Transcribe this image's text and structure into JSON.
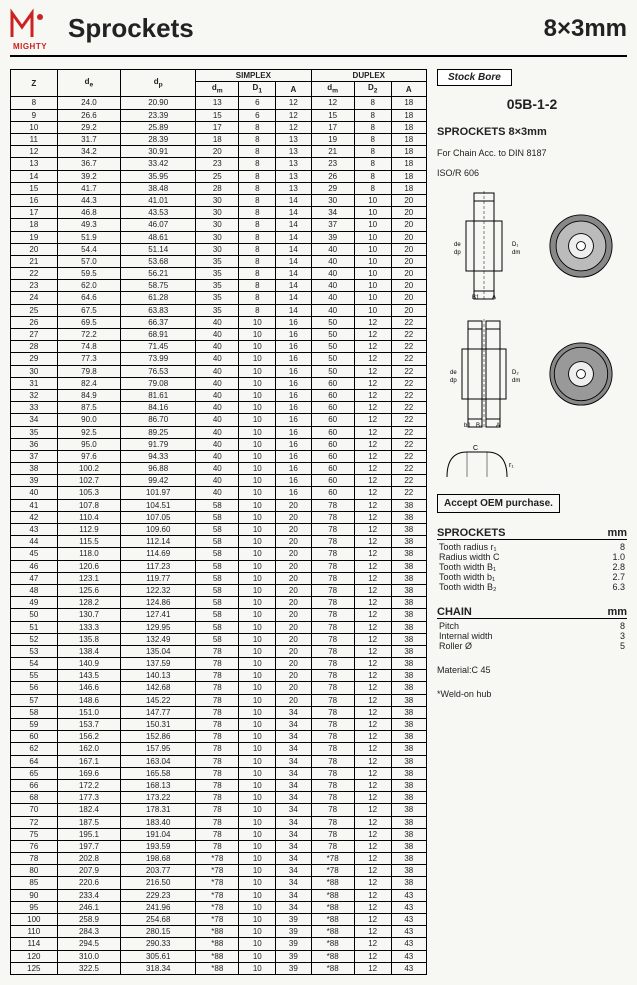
{
  "header": {
    "brand": "MIGHTY",
    "title": "Sprockets",
    "dim": "8×3mm"
  },
  "table": {
    "headers": {
      "z": "Z",
      "de": "d",
      "dp": "d",
      "simplex": "SIMPLEX",
      "duplex": "DUPLEX",
      "dm": "d",
      "d1": "D",
      "a": "A",
      "d2": "D"
    },
    "sub": {
      "de": "e",
      "dp": "p",
      "dm": "m",
      "d1": "1",
      "d2": "2"
    },
    "rows": [
      [
        "8",
        "24.0",
        "20.90",
        "13",
        "6",
        "12",
        "12",
        "8",
        "18"
      ],
      [
        "9",
        "26.6",
        "23.39",
        "15",
        "6",
        "12",
        "15",
        "8",
        "18"
      ],
      [
        "10",
        "29.2",
        "25.89",
        "17",
        "8",
        "12",
        "17",
        "8",
        "18"
      ],
      [
        "11",
        "31.7",
        "28.39",
        "18",
        "8",
        "13",
        "19",
        "8",
        "18"
      ],
      [
        "12",
        "34.2",
        "30.91",
        "20",
        "8",
        "13",
        "21",
        "8",
        "18"
      ],
      [
        "13",
        "36.7",
        "33.42",
        "23",
        "8",
        "13",
        "23",
        "8",
        "18"
      ],
      [
        "14",
        "39.2",
        "35.95",
        "25",
        "8",
        "13",
        "26",
        "8",
        "18"
      ],
      [
        "15",
        "41.7",
        "38.48",
        "28",
        "8",
        "13",
        "29",
        "8",
        "18"
      ],
      [
        "16",
        "44.3",
        "41.01",
        "30",
        "8",
        "14",
        "30",
        "10",
        "20"
      ],
      [
        "17",
        "46.8",
        "43.53",
        "30",
        "8",
        "14",
        "34",
        "10",
        "20"
      ],
      [
        "18",
        "49.3",
        "46.07",
        "30",
        "8",
        "14",
        "37",
        "10",
        "20"
      ],
      [
        "19",
        "51.9",
        "48.61",
        "30",
        "8",
        "14",
        "39",
        "10",
        "20"
      ],
      [
        "20",
        "54.4",
        "51.14",
        "30",
        "8",
        "14",
        "40",
        "10",
        "20"
      ],
      [
        "21",
        "57.0",
        "53.68",
        "35",
        "8",
        "14",
        "40",
        "10",
        "20"
      ],
      [
        "22",
        "59.5",
        "56.21",
        "35",
        "8",
        "14",
        "40",
        "10",
        "20"
      ],
      [
        "23",
        "62.0",
        "58.75",
        "35",
        "8",
        "14",
        "40",
        "10",
        "20"
      ],
      [
        "24",
        "64.6",
        "61.28",
        "35",
        "8",
        "14",
        "40",
        "10",
        "20"
      ],
      [
        "25",
        "67.5",
        "63.83",
        "35",
        "8",
        "14",
        "40",
        "10",
        "20"
      ],
      [
        "26",
        "69.5",
        "66.37",
        "40",
        "10",
        "16",
        "50",
        "12",
        "22"
      ],
      [
        "27",
        "72.2",
        "68.91",
        "40",
        "10",
        "16",
        "50",
        "12",
        "22"
      ],
      [
        "28",
        "74.8",
        "71.45",
        "40",
        "10",
        "16",
        "50",
        "12",
        "22"
      ],
      [
        "29",
        "77.3",
        "73.99",
        "40",
        "10",
        "16",
        "50",
        "12",
        "22"
      ],
      [
        "30",
        "79.8",
        "76.53",
        "40",
        "10",
        "16",
        "50",
        "12",
        "22"
      ],
      [
        "31",
        "82.4",
        "79.08",
        "40",
        "10",
        "16",
        "60",
        "12",
        "22"
      ],
      [
        "32",
        "84.9",
        "81.61",
        "40",
        "10",
        "16",
        "60",
        "12",
        "22"
      ],
      [
        "33",
        "87.5",
        "84.16",
        "40",
        "10",
        "16",
        "60",
        "12",
        "22"
      ],
      [
        "34",
        "90.0",
        "86.70",
        "40",
        "10",
        "16",
        "60",
        "12",
        "22"
      ],
      [
        "35",
        "92.5",
        "89.25",
        "40",
        "10",
        "16",
        "60",
        "12",
        "22"
      ],
      [
        "36",
        "95.0",
        "91.79",
        "40",
        "10",
        "16",
        "60",
        "12",
        "22"
      ],
      [
        "37",
        "97.6",
        "94.33",
        "40",
        "10",
        "16",
        "60",
        "12",
        "22"
      ],
      [
        "38",
        "100.2",
        "96.88",
        "40",
        "10",
        "16",
        "60",
        "12",
        "22"
      ],
      [
        "39",
        "102.7",
        "99.42",
        "40",
        "10",
        "16",
        "60",
        "12",
        "22"
      ],
      [
        "40",
        "105.3",
        "101.97",
        "40",
        "10",
        "16",
        "60",
        "12",
        "22"
      ],
      [
        "41",
        "107.8",
        "104.51",
        "58",
        "10",
        "20",
        "78",
        "12",
        "38"
      ],
      [
        "42",
        "110.4",
        "107.05",
        "58",
        "10",
        "20",
        "78",
        "12",
        "38"
      ],
      [
        "43",
        "112.9",
        "109.60",
        "58",
        "10",
        "20",
        "78",
        "12",
        "38"
      ],
      [
        "44",
        "115.5",
        "112.14",
        "58",
        "10",
        "20",
        "78",
        "12",
        "38"
      ],
      [
        "45",
        "118.0",
        "114.69",
        "58",
        "10",
        "20",
        "78",
        "12",
        "38"
      ],
      [
        "46",
        "120.6",
        "117.23",
        "58",
        "10",
        "20",
        "78",
        "12",
        "38"
      ],
      [
        "47",
        "123.1",
        "119.77",
        "58",
        "10",
        "20",
        "78",
        "12",
        "38"
      ],
      [
        "48",
        "125.6",
        "122.32",
        "58",
        "10",
        "20",
        "78",
        "12",
        "38"
      ],
      [
        "49",
        "128.2",
        "124.86",
        "58",
        "10",
        "20",
        "78",
        "12",
        "38"
      ],
      [
        "50",
        "130.7",
        "127.41",
        "58",
        "10",
        "20",
        "78",
        "12",
        "38"
      ],
      [
        "51",
        "133.3",
        "129.95",
        "58",
        "10",
        "20",
        "78",
        "12",
        "38"
      ],
      [
        "52",
        "135.8",
        "132.49",
        "58",
        "10",
        "20",
        "78",
        "12",
        "38"
      ],
      [
        "53",
        "138.4",
        "135.04",
        "78",
        "10",
        "20",
        "78",
        "12",
        "38"
      ],
      [
        "54",
        "140.9",
        "137.59",
        "78",
        "10",
        "20",
        "78",
        "12",
        "38"
      ],
      [
        "55",
        "143.5",
        "140.13",
        "78",
        "10",
        "20",
        "78",
        "12",
        "38"
      ],
      [
        "56",
        "146.6",
        "142.68",
        "78",
        "10",
        "20",
        "78",
        "12",
        "38"
      ],
      [
        "57",
        "148.6",
        "145.22",
        "78",
        "10",
        "20",
        "78",
        "12",
        "38"
      ],
      [
        "58",
        "151.0",
        "147.77",
        "78",
        "10",
        "34",
        "78",
        "12",
        "38"
      ],
      [
        "59",
        "153.7",
        "150.31",
        "78",
        "10",
        "34",
        "78",
        "12",
        "38"
      ],
      [
        "60",
        "156.2",
        "152.86",
        "78",
        "10",
        "34",
        "78",
        "12",
        "38"
      ],
      [
        "62",
        "162.0",
        "157.95",
        "78",
        "10",
        "34",
        "78",
        "12",
        "38"
      ],
      [
        "64",
        "167.1",
        "163.04",
        "78",
        "10",
        "34",
        "78",
        "12",
        "38"
      ],
      [
        "65",
        "169.6",
        "165.58",
        "78",
        "10",
        "34",
        "78",
        "12",
        "38"
      ],
      [
        "66",
        "172.2",
        "168.13",
        "78",
        "10",
        "34",
        "78",
        "12",
        "38"
      ],
      [
        "68",
        "177.3",
        "173.22",
        "78",
        "10",
        "34",
        "78",
        "12",
        "38"
      ],
      [
        "70",
        "182.4",
        "178.31",
        "78",
        "10",
        "34",
        "78",
        "12",
        "38"
      ],
      [
        "72",
        "187.5",
        "183.40",
        "78",
        "10",
        "34",
        "78",
        "12",
        "38"
      ],
      [
        "75",
        "195.1",
        "191.04",
        "78",
        "10",
        "34",
        "78",
        "12",
        "38"
      ],
      [
        "76",
        "197.7",
        "193.59",
        "78",
        "10",
        "34",
        "78",
        "12",
        "38"
      ],
      [
        "78",
        "202.8",
        "198.68",
        "*78",
        "10",
        "34",
        "*78",
        "12",
        "38"
      ],
      [
        "80",
        "207.9",
        "203.77",
        "*78",
        "10",
        "34",
        "*78",
        "12",
        "38"
      ],
      [
        "85",
        "220.6",
        "216.50",
        "*78",
        "10",
        "34",
        "*88",
        "12",
        "38"
      ],
      [
        "90",
        "233.4",
        "229.23",
        "*78",
        "10",
        "34",
        "*88",
        "12",
        "43"
      ],
      [
        "95",
        "246.1",
        "241.96",
        "*78",
        "10",
        "34",
        "*88",
        "12",
        "43"
      ],
      [
        "100",
        "258.9",
        "254.68",
        "*78",
        "10",
        "39",
        "*88",
        "12",
        "43"
      ],
      [
        "110",
        "284.3",
        "280.15",
        "*88",
        "10",
        "39",
        "*88",
        "12",
        "43"
      ],
      [
        "114",
        "294.5",
        "290.33",
        "*88",
        "10",
        "39",
        "*88",
        "12",
        "43"
      ],
      [
        "120",
        "310.0",
        "305.61",
        "*88",
        "10",
        "39",
        "*88",
        "12",
        "43"
      ],
      [
        "125",
        "322.5",
        "318.34",
        "*88",
        "10",
        "39",
        "*88",
        "12",
        "43"
      ]
    ],
    "groupBreaks": [
      5,
      10,
      15,
      20,
      25,
      30,
      35,
      40,
      45,
      50,
      55,
      60,
      65,
      70,
      75
    ]
  },
  "side": {
    "stockbore": "Stock Bore",
    "model": "05B-1-2",
    "sprockets_title": "SPROCKETS  8×3mm",
    "forchain": "For Chain  Acc. to  DIN 8187",
    "iso": "ISO/R 606",
    "oem": "Accept OEM purchase.",
    "specs_title": "SPROCKETS",
    "specs_unit": "mm",
    "specs": [
      [
        "Tooth radius r₁",
        "8"
      ],
      [
        "Radius width C",
        "1.0"
      ],
      [
        "Tooth width B₁",
        "2.8"
      ],
      [
        "Tooth width b₁",
        "2.7"
      ],
      [
        "Tooth width B₂",
        "6.3"
      ]
    ],
    "chain_title": "CHAIN",
    "chain_unit": "mm",
    "chain": [
      [
        "Pitch",
        "8"
      ],
      [
        "Internal width",
        "3"
      ],
      [
        "Roller Ø",
        "5"
      ]
    ],
    "material": "Material:C 45",
    "weld": "*Weld-on hub"
  }
}
